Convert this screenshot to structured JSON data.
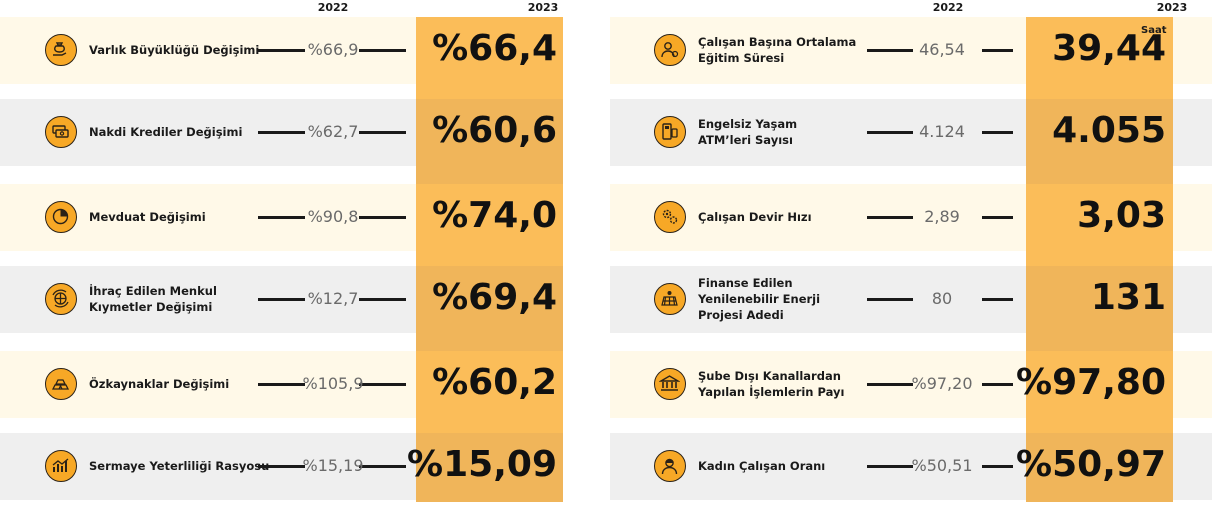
{
  "years": {
    "prev": "2022",
    "curr": "2023"
  },
  "left": [
    {
      "label": "Varlık Büyüklüğü Değişimi",
      "v2022": "%66,9",
      "v2023": "%66,4",
      "icon": "money-bag-hand-icon"
    },
    {
      "label": "Nakdi Krediler Değişimi",
      "v2022": "%62,7",
      "v2023": "%60,6",
      "icon": "cash-stack-icon"
    },
    {
      "label": "Mevduat Değişimi",
      "v2022": "%90,8",
      "v2023": "%74,0",
      "icon": "pie-chart-icon"
    },
    {
      "label": "İhraç Edilen Menkul\nKıymetler Değişimi",
      "v2022": "%12,7",
      "v2023": "%69,4",
      "icon": "globe-cycle-icon"
    },
    {
      "label": "Özkaynaklar Değişimi",
      "v2022": "%105,9",
      "v2023": "%60,2",
      "icon": "gold-bars-icon"
    },
    {
      "label": "Sermaye Yeterliliği Rasyosu",
      "v2022": "%15,19",
      "v2023": "%15,09",
      "icon": "growth-chart-icon"
    }
  ],
  "right": [
    {
      "label": "Çalışan Başına Ortalama\nEğitim Süresi",
      "v2022": "46,54",
      "v2023": "39,44",
      "unit": "Saat",
      "icon": "training-person-icon"
    },
    {
      "label": "Engelsiz Yaşam\nATM’leri Sayısı",
      "v2022": "4.124",
      "v2023": "4.055",
      "icon": "atm-icon"
    },
    {
      "label": "Çalışan Devir Hızı",
      "v2022": "2,89",
      "v2023": "3,03",
      "icon": "gears-icon"
    },
    {
      "label": "Finanse Edilen\nYenilenebilir Enerji\nProjesi Adedi",
      "v2022": "80",
      "v2023": "131",
      "icon": "solar-panel-icon"
    },
    {
      "label": "Şube Dışı Kanallardan\nYapılan İşlemlerin Payı",
      "v2022": "%97,20",
      "v2023": "%97,80",
      "icon": "bank-building-icon"
    },
    {
      "label": "Kadın Çalışan Oranı",
      "v2022": "%50,51",
      "v2023": "%50,97",
      "icon": "woman-employee-icon"
    }
  ]
}
